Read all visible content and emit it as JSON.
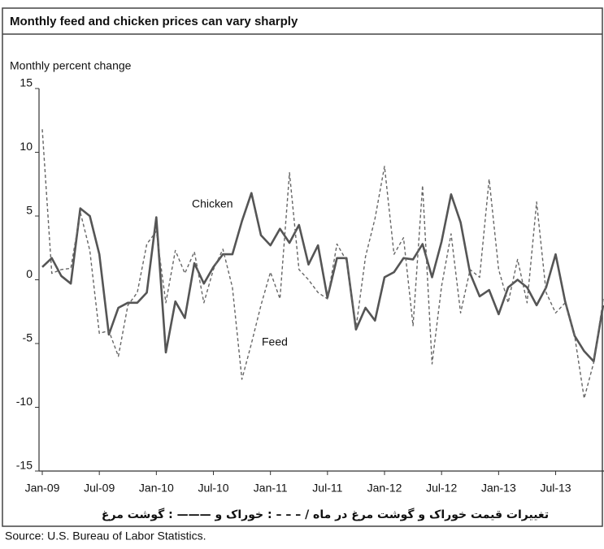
{
  "chart_data": {
    "type": "line",
    "title": "Monthly feed and chicken prices can vary sharply",
    "y_label": "Monthly percent change",
    "caption": "تغییرات قیمت خوراک و گوشت مرغ در ماه / – – – : خوراک و ——— : گوشت مرغ",
    "source": "Source: U.S. Bureau of Labor Statistics.",
    "annotations": [
      "Chicken",
      "Feed"
    ],
    "categories": [
      "Jan-09",
      null,
      null,
      null,
      null,
      null,
      "Jul-09",
      null,
      null,
      null,
      null,
      null,
      "Jan-10",
      null,
      null,
      null,
      null,
      null,
      "Jul-10",
      null,
      null,
      null,
      null,
      null,
      "Jan-11",
      null,
      null,
      null,
      null,
      null,
      "Jul-11",
      null,
      null,
      null,
      null,
      null,
      "Jan-12",
      null,
      null,
      null,
      null,
      null,
      "Jul-12",
      null,
      null,
      null,
      null,
      null,
      "Jan-13",
      null,
      null,
      null,
      null,
      null,
      "Jul-13",
      null,
      null,
      null,
      null,
      null
    ],
    "series": [
      {
        "name": "Chicken",
        "color": "#555555",
        "dash": false,
        "values": [
          1.0,
          1.7,
          0.3,
          -0.3,
          5.6,
          5.0,
          2.0,
          -4.3,
          -2.2,
          -1.8,
          -1.8,
          -1.0,
          4.9,
          -5.7,
          -1.7,
          -3.0,
          1.3,
          -0.3,
          1.0,
          2.0,
          2.0,
          4.6,
          6.8,
          3.5,
          2.7,
          4.0,
          2.9,
          4.3,
          1.2,
          2.7,
          -1.4,
          1.7,
          1.7,
          -3.9,
          -2.2,
          -3.2,
          0.2,
          0.6,
          1.7,
          1.6,
          2.8,
          0.2,
          3.0,
          6.7,
          4.5,
          0.5,
          -1.3,
          -0.8,
          -2.7,
          -0.6,
          0.0,
          -0.6,
          -2.0,
          -0.6,
          2.0,
          -1.7,
          -4.4,
          -5.6,
          -6.4,
          -2.0
        ]
      },
      {
        "name": "Feed",
        "color": "#666666",
        "dash": true,
        "values": [
          11.8,
          0.5,
          0.8,
          0.9,
          5.3,
          2.3,
          -4.2,
          -4.0,
          -6.0,
          -2.0,
          -1.0,
          2.8,
          3.8,
          -1.8,
          2.3,
          0.5,
          2.2,
          -1.8,
          0.8,
          2.4,
          -0.6,
          -7.8,
          -5.0,
          -2.0,
          0.6,
          -1.5,
          8.4,
          0.8,
          0.0,
          -1.0,
          -1.5,
          2.8,
          1.5,
          -3.8,
          1.8,
          4.8,
          8.9,
          2.0,
          3.3,
          -3.6,
          7.4,
          -6.6,
          -0.5,
          3.6,
          -2.6,
          0.8,
          0.2,
          7.9,
          0.8,
          -1.8,
          1.6,
          -1.8,
          6.1,
          -1.0,
          -2.6,
          -1.8,
          -4.4,
          -9.3,
          -6.5,
          -1.5
        ]
      }
    ],
    "ylim": [
      -15,
      15
    ],
    "yticks": [
      15,
      10,
      5,
      0,
      -5,
      -10,
      -15
    ],
    "grid": false
  }
}
